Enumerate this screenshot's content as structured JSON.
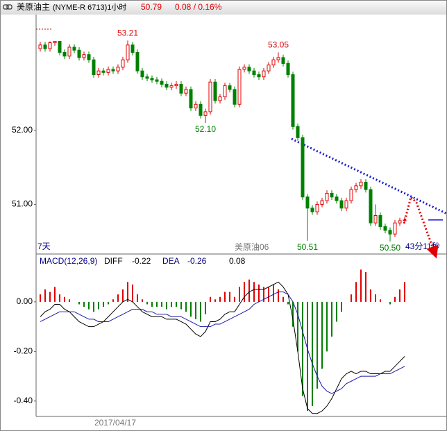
{
  "header": {
    "title": "美原油主",
    "code": "(NYME-R 6713)1小时",
    "price": 50.79,
    "change": "0.08 / 0.16%"
  },
  "chart_data": [
    {
      "type": "candlestick",
      "up_color": "#e00000",
      "down_color": "#008000",
      "ylim": [
        50.34,
        53.56
      ],
      "yticks": [
        {
          "value": 51,
          "label": "51.00"
        },
        {
          "value": 52,
          "label": "52.00"
        }
      ],
      "categories": [
        null,
        null,
        null,
        null,
        null,
        null,
        null,
        null,
        "2017/04/17",
        null,
        null,
        null,
        null,
        null,
        null,
        null,
        null,
        null,
        null,
        null,
        null,
        null,
        null,
        null,
        null,
        null,
        null,
        null,
        null,
        null,
        null,
        null,
        null,
        null,
        null,
        null,
        null,
        null,
        null,
        null,
        null,
        null,
        null,
        null,
        null,
        null,
        null,
        null,
        null,
        null,
        null,
        null,
        null,
        null,
        null,
        null,
        null,
        null,
        null,
        null,
        null,
        null,
        null,
        null,
        null,
        null,
        null,
        null,
        null,
        null,
        null,
        null,
        null,
        null,
        null,
        null
      ],
      "ohlc": [
        [
          53.1,
          53.19,
          53.06,
          53.15
        ],
        [
          53.15,
          53.19,
          53.06,
          53.1
        ],
        [
          53.1,
          53.2,
          53.06,
          53.18
        ],
        [
          53.18,
          53.2,
          53.14,
          53.2
        ],
        [
          53.2,
          53.2,
          53.01,
          53.05
        ],
        [
          53.05,
          53.09,
          52.96,
          53.0
        ],
        [
          53.0,
          53.16,
          52.96,
          53.12
        ],
        [
          53.12,
          53.16,
          53.04,
          53.08
        ],
        [
          53.08,
          53.12,
          52.94,
          52.98
        ],
        [
          52.98,
          53.06,
          52.94,
          53.02
        ],
        [
          53.02,
          53.06,
          52.91,
          52.95
        ],
        [
          52.95,
          52.99,
          52.71,
          52.75
        ],
        [
          52.75,
          52.84,
          52.71,
          52.8
        ],
        [
          52.8,
          52.84,
          52.74,
          52.78
        ],
        [
          52.78,
          52.86,
          52.74,
          52.82
        ],
        [
          52.82,
          52.86,
          52.76,
          52.8
        ],
        [
          52.8,
          52.89,
          52.76,
          52.85
        ],
        [
          52.85,
          52.99,
          52.81,
          52.95
        ],
        [
          52.95,
          53.21,
          52.91,
          53.15
        ],
        [
          53.15,
          53.19,
          53.01,
          53.05
        ],
        [
          53.05,
          53.09,
          52.76,
          52.8
        ],
        [
          52.8,
          52.84,
          52.68,
          52.72
        ],
        [
          52.72,
          52.76,
          52.66,
          52.7
        ],
        [
          52.7,
          52.74,
          52.64,
          52.68
        ],
        [
          52.68,
          52.72,
          52.62,
          52.66
        ],
        [
          52.66,
          52.7,
          52.58,
          52.62
        ],
        [
          52.62,
          52.66,
          52.54,
          52.58
        ],
        [
          52.58,
          52.64,
          52.54,
          52.6
        ],
        [
          52.6,
          52.66,
          52.56,
          52.62
        ],
        [
          52.62,
          52.66,
          52.46,
          52.5
        ],
        [
          52.5,
          52.59,
          52.46,
          52.55
        ],
        [
          52.55,
          52.59,
          52.26,
          52.3
        ],
        [
          52.3,
          52.39,
          52.26,
          52.35
        ],
        [
          52.35,
          52.39,
          52.16,
          52.2
        ],
        [
          52.2,
          52.29,
          52.1,
          52.25
        ],
        [
          52.25,
          52.69,
          52.21,
          52.65
        ],
        [
          52.65,
          52.69,
          52.36,
          52.4
        ],
        [
          52.4,
          52.49,
          52.36,
          52.45
        ],
        [
          52.45,
          52.64,
          52.41,
          52.6
        ],
        [
          52.6,
          52.64,
          52.51,
          52.55
        ],
        [
          52.55,
          52.59,
          52.31,
          52.35
        ],
        [
          52.35,
          52.86,
          52.31,
          52.82
        ],
        [
          52.82,
          52.89,
          52.78,
          52.85
        ],
        [
          52.85,
          52.89,
          52.76,
          52.8
        ],
        [
          52.8,
          52.84,
          52.71,
          52.75
        ],
        [
          52.75,
          52.79,
          52.68,
          52.72
        ],
        [
          52.72,
          52.84,
          52.68,
          52.8
        ],
        [
          52.8,
          52.92,
          52.76,
          52.88
        ],
        [
          52.88,
          52.99,
          52.84,
          52.95
        ],
        [
          52.95,
          53.05,
          52.91,
          52.98
        ],
        [
          52.98,
          53.02,
          52.86,
          52.9
        ],
        [
          52.9,
          52.94,
          52.71,
          52.75
        ],
        [
          52.75,
          52.79,
          52.01,
          52.05
        ],
        [
          52.05,
          52.09,
          51.86,
          51.9
        ],
        [
          51.9,
          51.94,
          51.06,
          51.1
        ],
        [
          51.1,
          51.14,
          50.51,
          50.95
        ],
        [
          50.95,
          50.99,
          50.86,
          50.9
        ],
        [
          50.9,
          51.04,
          50.86,
          51.0
        ],
        [
          51.0,
          51.09,
          50.96,
          51.05
        ],
        [
          51.05,
          51.19,
          51.01,
          51.15
        ],
        [
          51.15,
          51.19,
          51.06,
          51.1
        ],
        [
          51.1,
          51.14,
          51.01,
          51.05
        ],
        [
          51.05,
          51.09,
          50.91,
          50.95
        ],
        [
          50.95,
          51.09,
          50.91,
          51.05
        ],
        [
          51.05,
          51.24,
          51.01,
          51.2
        ],
        [
          51.2,
          51.29,
          51.16,
          51.25
        ],
        [
          51.25,
          51.34,
          51.21,
          51.3
        ],
        [
          51.3,
          51.34,
          51.16,
          51.2
        ],
        [
          51.2,
          51.24,
          50.71,
          50.75
        ],
        [
          50.75,
          51.0,
          50.71,
          50.85
        ],
        [
          50.85,
          50.89,
          50.66,
          50.7
        ],
        [
          50.7,
          50.74,
          50.61,
          50.65
        ],
        [
          50.65,
          50.69,
          50.5,
          50.6
        ],
        [
          50.6,
          50.79,
          50.56,
          50.75
        ],
        [
          50.75,
          50.82,
          50.71,
          50.78
        ],
        [
          50.78,
          50.83,
          50.74,
          50.79
        ]
      ],
      "annotations": [
        {
          "value": 53.21,
          "label": "53.21",
          "color": "#e00000"
        },
        {
          "value": 52.1,
          "label": "52.10",
          "color": "#008000"
        },
        {
          "value": 53.05,
          "label": "53.05",
          "color": "#e00000"
        },
        {
          "value": 50.51,
          "label": "50.51",
          "color": "#008000"
        },
        {
          "value": 50.5,
          "label": "50.50",
          "color": "#008000"
        }
      ],
      "period": "7天",
      "symbol": "美原油06",
      "countdown": "43分11秒"
    },
    {
      "type": "macd",
      "title": "MACD(12,26,9)",
      "diff_last": -0.22,
      "dea_last": -0.26,
      "macd_last": 0.08,
      "ylim": [
        -0.462,
        0.19
      ],
      "yticks": [
        {
          "value": 0,
          "label": "0.00"
        },
        {
          "value": -0.2,
          "label": "-0.20"
        },
        {
          "value": -0.4,
          "label": "-0.40"
        }
      ],
      "up_color": "#e00000",
      "down_color": "#008000",
      "histogram": [
        0.03,
        0.05,
        0.04,
        0.06,
        0.03,
        0.02,
        0.01,
        0.0,
        -0.01,
        -0.02,
        -0.03,
        -0.04,
        -0.03,
        -0.02,
        -0.01,
        0.01,
        0.03,
        0.05,
        0.08,
        0.07,
        0.03,
        0.01,
        -0.01,
        -0.02,
        -0.02,
        -0.02,
        -0.03,
        -0.02,
        -0.02,
        -0.03,
        -0.04,
        -0.06,
        -0.07,
        -0.08,
        -0.05,
        0.02,
        0.01,
        0.02,
        0.04,
        0.04,
        0.02,
        0.06,
        0.08,
        0.09,
        0.08,
        0.07,
        0.06,
        0.06,
        0.07,
        0.05,
        0.02,
        -0.01,
        -0.1,
        -0.2,
        -0.38,
        -0.44,
        -0.42,
        -0.35,
        -0.27,
        -0.2,
        -0.14,
        -0.08,
        -0.04,
        0.0,
        0.03,
        0.08,
        0.13,
        0.12,
        0.05,
        0.03,
        0.01,
        0.0,
        -0.01,
        0.02,
        0.05,
        0.08
      ],
      "series": [
        {
          "name": "DIFF",
          "color": "#000000",
          "values": [
            -0.06,
            -0.04,
            -0.03,
            -0.01,
            -0.01,
            -0.03,
            -0.04,
            -0.06,
            -0.08,
            -0.09,
            -0.1,
            -0.1,
            -0.09,
            -0.08,
            -0.06,
            -0.04,
            -0.02,
            0.0,
            0.01,
            0.0,
            -0.02,
            -0.04,
            -0.05,
            -0.06,
            -0.06,
            -0.06,
            -0.07,
            -0.07,
            -0.07,
            -0.08,
            -0.09,
            -0.11,
            -0.13,
            -0.14,
            -0.12,
            -0.08,
            -0.08,
            -0.07,
            -0.05,
            -0.04,
            -0.04,
            -0.01,
            0.02,
            0.04,
            0.05,
            0.05,
            0.05,
            0.06,
            0.07,
            0.08,
            0.06,
            0.03,
            -0.07,
            -0.2,
            -0.35,
            -0.43,
            -0.45,
            -0.45,
            -0.44,
            -0.42,
            -0.39,
            -0.35,
            -0.31,
            -0.29,
            -0.28,
            -0.29,
            -0.28,
            -0.28,
            -0.29,
            -0.29,
            -0.29,
            -0.28,
            -0.28,
            -0.26,
            -0.24,
            -0.22
          ]
        },
        {
          "name": "DEA",
          "color": "#1a1aa8",
          "values": [
            -0.08,
            -0.07,
            -0.06,
            -0.05,
            -0.04,
            -0.04,
            -0.04,
            -0.04,
            -0.05,
            -0.06,
            -0.07,
            -0.07,
            -0.08,
            -0.08,
            -0.08,
            -0.07,
            -0.06,
            -0.05,
            -0.04,
            -0.03,
            -0.03,
            -0.03,
            -0.04,
            -0.04,
            -0.05,
            -0.05,
            -0.05,
            -0.06,
            -0.06,
            -0.06,
            -0.07,
            -0.08,
            -0.09,
            -0.1,
            -0.1,
            -0.1,
            -0.09,
            -0.09,
            -0.08,
            -0.07,
            -0.06,
            -0.05,
            -0.04,
            -0.03,
            -0.01,
            0.0,
            0.01,
            0.02,
            0.03,
            0.04,
            0.04,
            0.03,
            0.0,
            -0.05,
            -0.12,
            -0.19,
            -0.25,
            -0.3,
            -0.34,
            -0.36,
            -0.37,
            -0.36,
            -0.35,
            -0.33,
            -0.32,
            -0.31,
            -0.3,
            -0.3,
            -0.3,
            -0.3,
            -0.29,
            -0.29,
            -0.29,
            -0.28,
            -0.27,
            -0.26
          ]
        }
      ]
    }
  ]
}
